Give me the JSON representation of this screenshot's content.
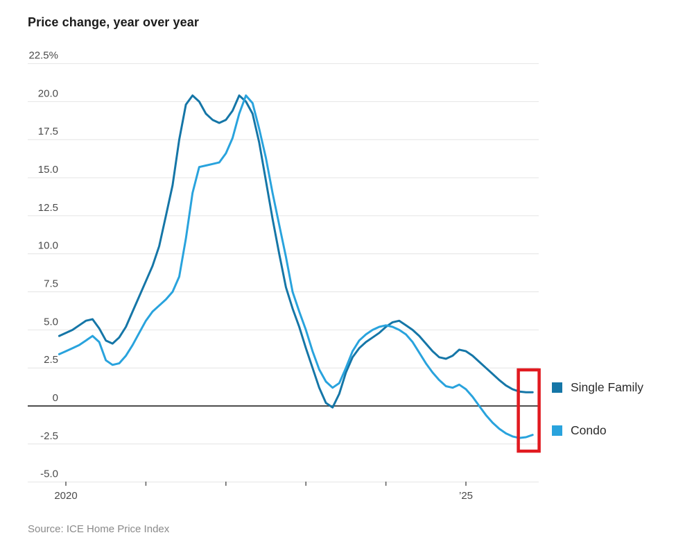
{
  "title": "Price change, year over year",
  "source": "Source: ICE Home Price Index",
  "legend": [
    {
      "label": "Single Family",
      "color": "#1576a7"
    },
    {
      "label": "Condo",
      "color": "#29a3dd"
    }
  ],
  "colors": {
    "single_family": "#1576a7",
    "condo": "#29a3dd",
    "highlight_red": "#e11a20",
    "gridline": "#e4e4e4",
    "zero_line": "#4d4d4d",
    "tick": "#666666"
  },
  "chart_data": {
    "type": "line",
    "title": "Price change, year over year",
    "ylabel": "Price change, year over year (%)",
    "xlabel": "",
    "grid": true,
    "legend_position": "right",
    "ylim": [
      -5,
      22.5
    ],
    "xlim_years": [
      2019.6,
      2025.91
    ],
    "x_start": 2019.9167,
    "x_step": 0.0833,
    "x_axis": {
      "ticks": [
        2020,
        2021,
        2022,
        2023,
        2024,
        2025
      ],
      "tick_labels": [
        "2020",
        "",
        "",
        "",
        "",
        "’25"
      ]
    },
    "y_axis": {
      "ticks": [
        22.5,
        20,
        17.5,
        15,
        12.5,
        10,
        7.5,
        5,
        2.5,
        0,
        -2.5,
        -5
      ],
      "tick_labels": [
        "22.5%",
        "20.0",
        "17.5",
        "15.0",
        "12.5",
        "10.0",
        "7.5",
        "5.0",
        "2.5",
        "0",
        "-2.5",
        "-5.0"
      ]
    },
    "series": [
      {
        "name": "Single Family",
        "color": "#1576a7",
        "cadence": "monthly from Dec 2019",
        "values": [
          4.6,
          4.8,
          5.0,
          5.3,
          5.6,
          5.7,
          5.1,
          4.3,
          4.1,
          4.5,
          5.2,
          6.2,
          7.2,
          8.2,
          9.2,
          10.5,
          12.5,
          14.5,
          17.5,
          19.8,
          20.4,
          20.0,
          19.2,
          18.8,
          18.6,
          18.8,
          19.4,
          20.4,
          20.0,
          19.2,
          17.3,
          14.8,
          12.3,
          10.0,
          7.8,
          6.4,
          5.2,
          3.8,
          2.5,
          1.2,
          0.2,
          -0.1,
          0.8,
          2.2,
          3.2,
          3.8,
          4.2,
          4.5,
          4.8,
          5.2,
          5.5,
          5.6,
          5.3,
          5.0,
          4.6,
          4.1,
          3.6,
          3.2,
          3.1,
          3.3,
          3.7,
          3.6,
          3.3,
          2.9,
          2.5,
          2.1,
          1.7,
          1.35,
          1.1,
          0.95,
          0.9,
          0.9
        ]
      },
      {
        "name": "Condo",
        "color": "#29a3dd",
        "cadence": "monthly from Dec 2019",
        "values": [
          3.4,
          3.6,
          3.8,
          4.0,
          4.3,
          4.6,
          4.2,
          3.0,
          2.7,
          2.8,
          3.3,
          4.0,
          4.8,
          5.6,
          6.2,
          6.6,
          7.0,
          7.5,
          8.5,
          11.0,
          14.0,
          15.7,
          15.8,
          15.9,
          16.0,
          16.6,
          17.6,
          19.2,
          20.4,
          19.9,
          18.2,
          16.3,
          14.0,
          11.9,
          9.8,
          7.5,
          6.2,
          5.0,
          3.6,
          2.4,
          1.6,
          1.2,
          1.5,
          2.5,
          3.6,
          4.3,
          4.7,
          5.0,
          5.2,
          5.3,
          5.2,
          5.0,
          4.7,
          4.2,
          3.5,
          2.8,
          2.2,
          1.7,
          1.3,
          1.2,
          1.4,
          1.1,
          0.6,
          0.0,
          -0.6,
          -1.1,
          -1.5,
          -1.8,
          -2.0,
          -2.1,
          -2.05,
          -1.9
        ]
      }
    ],
    "annotations": [
      {
        "type": "highlight-box",
        "color": "#e11a20",
        "x_range_years": [
          2025.655,
          2025.915
        ],
        "y_range": [
          -2.97,
          2.37
        ]
      }
    ]
  }
}
